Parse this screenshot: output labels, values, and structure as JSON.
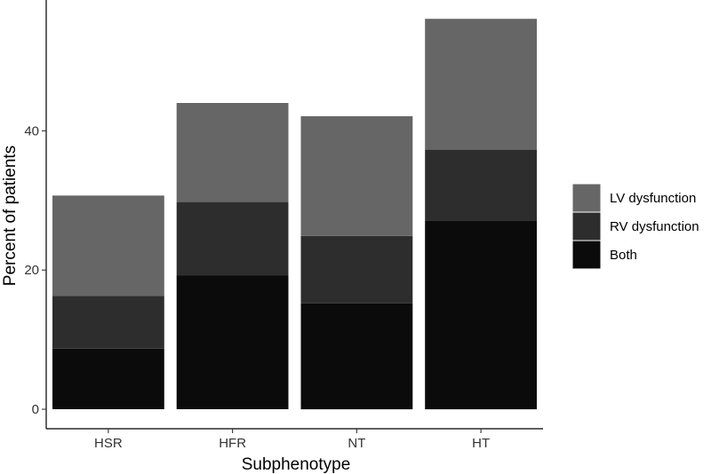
{
  "chart_data": {
    "type": "bar",
    "stacked": true,
    "categories": [
      "HSR",
      "HFR",
      "NT",
      "HT"
    ],
    "series": [
      {
        "name": "Both",
        "values": [
          8.7,
          19.2,
          15.2,
          27.1
        ],
        "color": "#0b0b0b"
      },
      {
        "name": "RV dysfunction",
        "values": [
          7.6,
          10.6,
          9.7,
          10.2
        ],
        "color": "#2d2d2d"
      },
      {
        "name": "LV dysfunction",
        "values": [
          14.4,
          14.2,
          17.2,
          18.8
        ],
        "color": "#666666"
      }
    ],
    "legend_order": [
      "LV dysfunction",
      "RV dysfunction",
      "Both"
    ],
    "xlabel": "Subphenotype",
    "ylabel": "Percent of patients",
    "ylim": [
      -2.8,
      58.8
    ],
    "yticks": [
      0,
      20,
      40
    ],
    "grid": false,
    "legend_position": "right"
  }
}
